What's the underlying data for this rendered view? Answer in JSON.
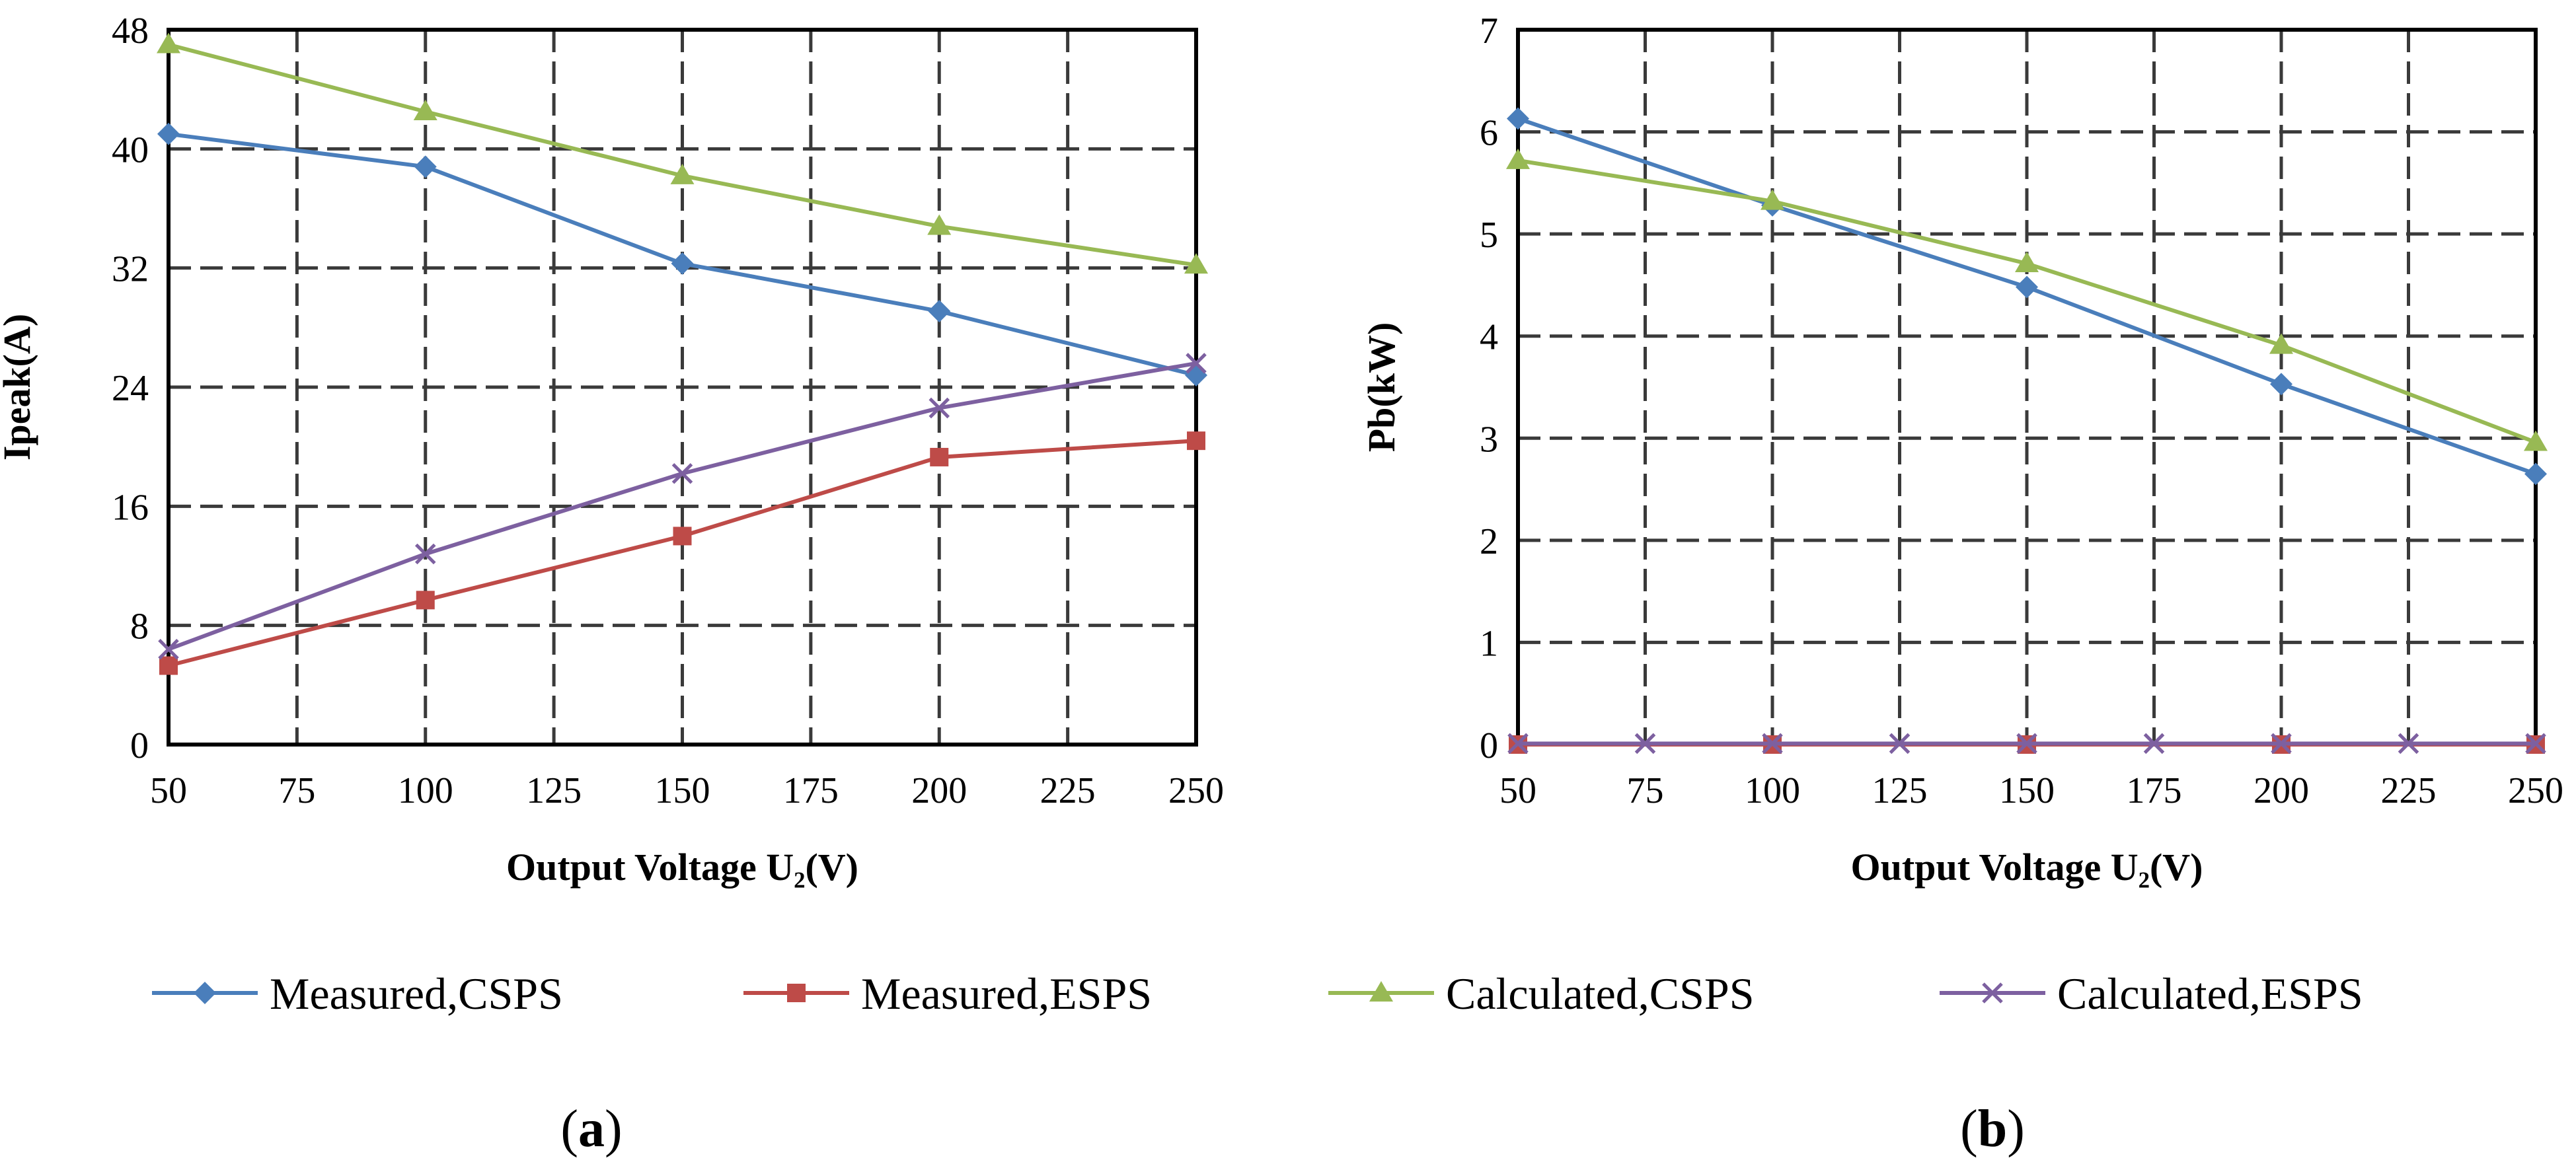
{
  "legend": [
    {
      "name": "Measured,CSPS",
      "color": "#4a7ebb",
      "marker": "diamond"
    },
    {
      "name": "Measured,ESPS",
      "color": "#be4b48",
      "marker": "square"
    },
    {
      "name": "Calculated,CSPS",
      "color": "#98b954",
      "marker": "triangle"
    },
    {
      "name": "Calculated,ESPS",
      "color": "#7d60a0",
      "marker": "x"
    }
  ],
  "chart_data": [
    {
      "type": "line",
      "panel_label": "a",
      "title": "",
      "xlabel": "Output Voltage U₂(V)",
      "ylabel": "Ipeak(A)",
      "xlim": [
        50,
        250
      ],
      "ylim": [
        0,
        48
      ],
      "xticks": [
        50,
        75,
        100,
        125,
        150,
        175,
        200,
        225,
        250
      ],
      "yticks": [
        0,
        8,
        16,
        24,
        32,
        40,
        48
      ],
      "grid": true,
      "series": [
        {
          "name": "Measured,CSPS",
          "x": [
            50,
            100,
            150,
            200,
            250
          ],
          "values": [
            41.0,
            38.8,
            32.3,
            29.1,
            24.8
          ]
        },
        {
          "name": "Measured,ESPS",
          "x": [
            50,
            100,
            150,
            200,
            250
          ],
          "values": [
            5.3,
            9.7,
            14.0,
            19.3,
            20.4
          ]
        },
        {
          "name": "Calculated,CSPS",
          "x": [
            50,
            100,
            150,
            200,
            250
          ],
          "values": [
            47.0,
            42.5,
            38.2,
            34.8,
            32.2
          ]
        },
        {
          "name": "Calculated,ESPS",
          "x": [
            50,
            100,
            150,
            200,
            250
          ],
          "values": [
            6.4,
            12.8,
            18.2,
            22.6,
            25.6
          ]
        }
      ]
    },
    {
      "type": "line",
      "panel_label": "b",
      "title": "",
      "xlabel": "Output Voltage U₂(V)",
      "ylabel": "Pb(kW)",
      "xlim": [
        50,
        250
      ],
      "ylim": [
        0,
        7
      ],
      "xticks": [
        50,
        75,
        100,
        125,
        150,
        175,
        200,
        225,
        250
      ],
      "yticks": [
        0,
        1,
        2,
        3,
        4,
        5,
        6,
        7
      ],
      "grid": true,
      "series": [
        {
          "name": "Measured,CSPS",
          "x": [
            50,
            100,
            150,
            200,
            250
          ],
          "values": [
            6.13,
            5.28,
            4.48,
            3.53,
            2.65
          ]
        },
        {
          "name": "Measured,ESPS",
          "x": [
            50,
            100,
            150,
            200,
            250
          ],
          "values": [
            0.0,
            0.0,
            0.0,
            0.0,
            0.0
          ]
        },
        {
          "name": "Calculated,CSPS",
          "x": [
            50,
            100,
            150,
            200,
            250
          ],
          "values": [
            5.72,
            5.32,
            4.71,
            3.91,
            2.96
          ]
        },
        {
          "name": "Calculated,ESPS",
          "x": [
            50,
            75,
            100,
            125,
            150,
            175,
            200,
            225,
            250
          ],
          "values": [
            0.01,
            0.01,
            0.01,
            0.01,
            0.01,
            0.01,
            0.01,
            0.01,
            0.01
          ]
        }
      ]
    }
  ]
}
